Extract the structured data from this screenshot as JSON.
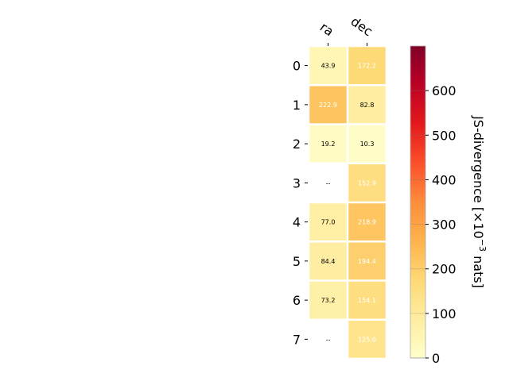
{
  "chart_data": {
    "type": "heatmap",
    "columns": [
      "ra",
      "dec"
    ],
    "rows": [
      "0",
      "1",
      "2",
      "3",
      "4",
      "5",
      "6",
      "7"
    ],
    "values": [
      [
        43.9,
        172.2
      ],
      [
        222.9,
        82.8
      ],
      [
        19.2,
        10.3
      ],
      [
        null,
        152.9
      ],
      [
        77.0,
        218.9
      ],
      [
        84.4,
        194.4
      ],
      [
        73.2,
        154.1
      ],
      [
        null,
        125.0
      ]
    ],
    "cell_labels": [
      [
        "43.9",
        "172.2"
      ],
      [
        "222.9",
        "82.8"
      ],
      [
        "19.2",
        "10.3"
      ],
      [
        "--",
        "152.9"
      ],
      [
        "77.0",
        "218.9"
      ],
      [
        "84.4",
        "194.4"
      ],
      [
        "73.2",
        "154.1"
      ],
      [
        "--",
        "125.0"
      ]
    ],
    "colorbar": {
      "label": "JS-divergence [×10",
      "label_exponent": "−3",
      "label_suffix": " nats]",
      "range": [
        0,
        700
      ],
      "ticks": [
        "0",
        "100",
        "200",
        "300",
        "400",
        "500",
        "600"
      ],
      "colormap": "YlOrRd"
    },
    "label_color_threshold": 100,
    "light_text_color": "#ffffff",
    "dark_text_color": "#000000",
    "grid": false
  }
}
